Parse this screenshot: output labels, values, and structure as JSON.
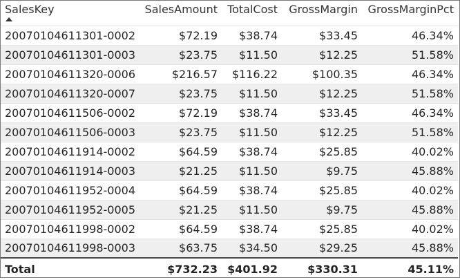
{
  "table": {
    "columns": [
      "SalesKey",
      "SalesAmount",
      "TotalCost",
      "GrossMargin",
      "GrossMarginPct"
    ],
    "sort": {
      "column": "SalesKey",
      "direction": "ascending",
      "icon": "sort-ascending-icon"
    },
    "rows": [
      [
        "20070104611301-0002",
        "$72.19",
        "$38.74",
        "$33.45",
        "46.34%"
      ],
      [
        "20070104611301-0003",
        "$23.75",
        "$11.50",
        "$12.25",
        "51.58%"
      ],
      [
        "20070104611320-0006",
        "$216.57",
        "$116.22",
        "$100.35",
        "46.34%"
      ],
      [
        "20070104611320-0007",
        "$23.75",
        "$11.50",
        "$12.25",
        "51.58%"
      ],
      [
        "20070104611506-0002",
        "$72.19",
        "$38.74",
        "$33.45",
        "46.34%"
      ],
      [
        "20070104611506-0003",
        "$23.75",
        "$11.50",
        "$12.25",
        "51.58%"
      ],
      [
        "20070104611914-0002",
        "$64.59",
        "$38.74",
        "$25.85",
        "40.02%"
      ],
      [
        "20070104611914-0003",
        "$21.25",
        "$11.50",
        "$9.75",
        "45.88%"
      ],
      [
        "20070104611952-0004",
        "$64.59",
        "$38.74",
        "$25.85",
        "40.02%"
      ],
      [
        "20070104611952-0005",
        "$21.25",
        "$11.50",
        "$9.75",
        "45.88%"
      ],
      [
        "20070104611998-0002",
        "$64.59",
        "$38.74",
        "$25.85",
        "40.02%"
      ],
      [
        "20070104611998-0003",
        "$63.75",
        "$34.50",
        "$29.25",
        "45.88%"
      ]
    ],
    "total": [
      "Total",
      "$732.23",
      "$401.92",
      "$330.31",
      "45.11%"
    ]
  },
  "colors": {
    "text": "#252423",
    "band": "#efefef",
    "border": "#7a7a7a",
    "total_rule": "#4a4a4a"
  }
}
